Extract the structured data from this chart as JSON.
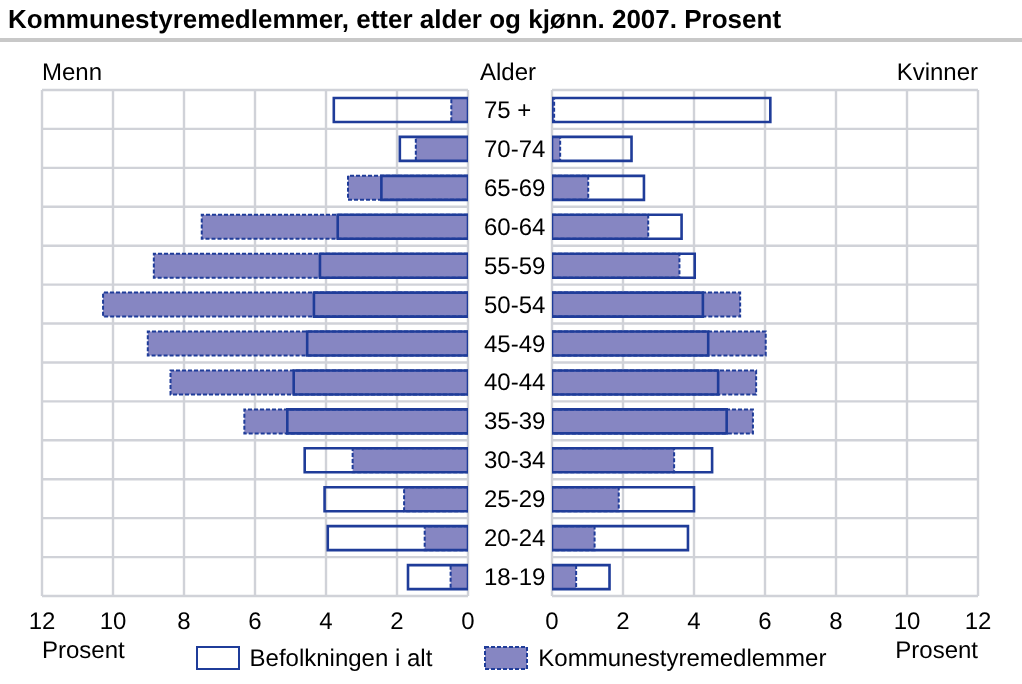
{
  "chart_data": [
    {
      "type": "bar",
      "orientation": "horizontal",
      "title": "Kommunestyremedlemmer, etter alder og kjønn. 2007. Prosent",
      "subtitle": "Menn",
      "ylabel": "Alder",
      "xlabel": "Prosent",
      "categories": [
        "75 +",
        "70-74",
        "65-69",
        "60-64",
        "55-59",
        "50-54",
        "45-49",
        "40-44",
        "35-39",
        "30-34",
        "25-29",
        "20-24",
        "18-19"
      ],
      "series": [
        {
          "name": "Kommunestyremedlemmer",
          "color": "#8686c2",
          "values": [
            0.47,
            1.47,
            3.38,
            7.5,
            8.85,
            10.28,
            9.02,
            8.38,
            6.3,
            3.25,
            1.8,
            1.22,
            0.49
          ]
        },
        {
          "name": "Befolkningen i alt",
          "color": "#1f3c99",
          "values": [
            3.78,
            1.92,
            2.44,
            3.67,
            4.17,
            4.34,
            4.53,
            4.91,
            5.09,
            4.6,
            4.04,
            3.95,
            1.69
          ]
        }
      ],
      "xlim": [
        12,
        0
      ],
      "xticks": [
        12,
        10,
        8,
        6,
        4,
        2,
        0
      ],
      "grid": true,
      "legend": "bottom"
    },
    {
      "type": "bar",
      "orientation": "horizontal",
      "title": "Kvinner",
      "xlabel": "Prosent",
      "categories": [
        null,
        null,
        null,
        null,
        null,
        null,
        null,
        null,
        null,
        null,
        null,
        null,
        null
      ],
      "series": [
        {
          "color": "#8686c2",
          "values": [
            0.06,
            0.23,
            1.02,
            2.71,
            3.59,
            5.3,
            6.02,
            5.75,
            5.66,
            3.44,
            1.88,
            1.2,
            0.68
          ]
        },
        {
          "color": "#1f3c99",
          "values": [
            6.15,
            2.24,
            2.59,
            3.65,
            4.02,
            4.25,
            4.4,
            4.68,
            4.92,
            4.51,
            4.0,
            3.83,
            1.62
          ]
        }
      ],
      "xlim": [
        0,
        12
      ],
      "xticks": [
        0,
        2,
        4,
        6,
        8,
        10,
        12
      ],
      "grid": true,
      "tick_labels": "x"
    }
  ]
}
